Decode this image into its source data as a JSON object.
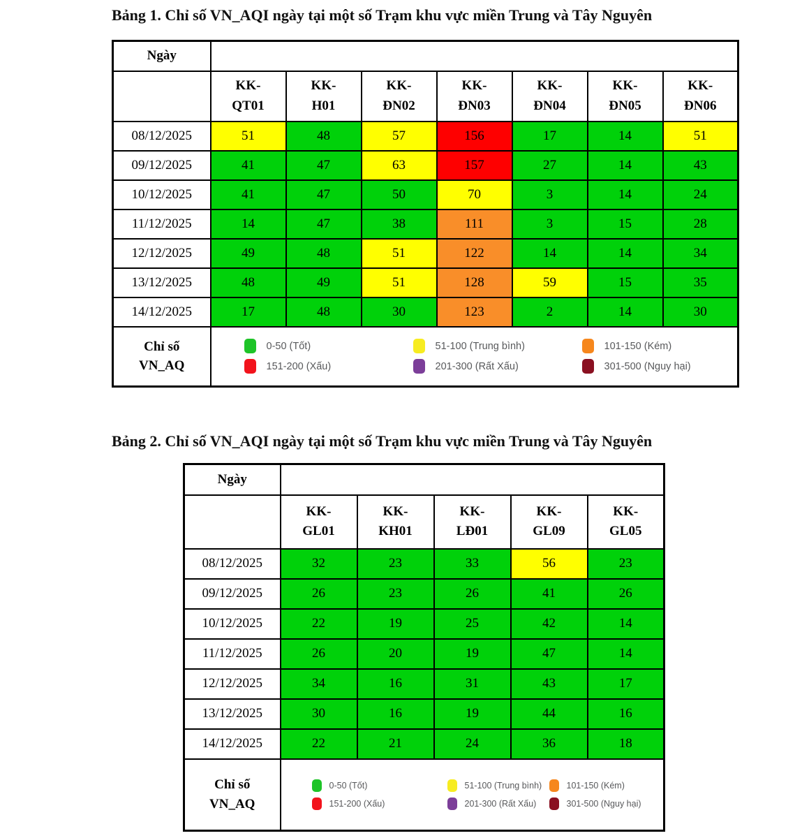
{
  "legend": {
    "label_lines": [
      "Chỉ số",
      "VN_AQ"
    ],
    "column_order": [
      [
        0,
        3
      ],
      [
        1,
        4
      ],
      [
        2,
        5
      ]
    ]
  },
  "aqi_levels": [
    {
      "label": "0-50 (Tốt)",
      "cell_color": "#00D10A",
      "swatch_color": "#1EC428",
      "max": 50
    },
    {
      "label": "51-100 (Trung bình)",
      "cell_color": "#FFFF00",
      "swatch_color": "#F7EC21",
      "max": 100
    },
    {
      "label": "101-150 (Kém)",
      "cell_color": "#F98E29",
      "swatch_color": "#F6871D",
      "max": 150
    },
    {
      "label": "151-200 (Xấu)",
      "cell_color": "#FE0000",
      "swatch_color": "#F2131C",
      "max": 200
    },
    {
      "label": "201-300 (Rất Xấu)",
      "cell_color": "#7C3E99",
      "swatch_color": "#7C3E99",
      "max": 300
    },
    {
      "label": "301-500 (Nguy hại)",
      "cell_color": "#8A1021",
      "swatch_color": "#8A1021",
      "max": 500
    }
  ],
  "tables": [
    {
      "caption": "Bảng 1. Chỉ số VN_AQI ngày tại một số Trạm khu vực miền Trung và Tây Nguyên",
      "date_header": "Ngày",
      "stations": [
        "KK-QT01",
        "KK-H01",
        "KK-ĐN02",
        "KK-ĐN03",
        "KK-ĐN04",
        "KK-ĐN05",
        "KK-ĐN06"
      ],
      "rows": [
        {
          "date": "08/12/2025",
          "values": [
            51,
            48,
            57,
            156,
            17,
            14,
            51
          ]
        },
        {
          "date": "09/12/2025",
          "values": [
            41,
            47,
            63,
            157,
            27,
            14,
            43
          ]
        },
        {
          "date": "10/12/2025",
          "values": [
            41,
            47,
            50,
            70,
            3,
            14,
            24
          ]
        },
        {
          "date": "11/12/2025",
          "values": [
            14,
            47,
            38,
            111,
            3,
            15,
            28
          ]
        },
        {
          "date": "12/12/2025",
          "values": [
            49,
            48,
            51,
            122,
            14,
            14,
            34
          ]
        },
        {
          "date": "13/12/2025",
          "values": [
            48,
            49,
            51,
            128,
            59,
            15,
            35
          ]
        },
        {
          "date": "14/12/2025",
          "values": [
            17,
            48,
            30,
            123,
            2,
            14,
            30
          ]
        }
      ]
    },
    {
      "caption": "Bảng 2. Chỉ số VN_AQI ngày tại một số Trạm khu vực miền Trung và Tây Nguyên",
      "date_header": "Ngày",
      "stations": [
        "KK-GL01",
        "KK-KH01",
        "KK-LĐ01",
        "KK-GL09",
        "KK-GL05"
      ],
      "rows": [
        {
          "date": "08/12/2025",
          "values": [
            32,
            23,
            33,
            56,
            23
          ]
        },
        {
          "date": "09/12/2025",
          "values": [
            26,
            23,
            26,
            41,
            26
          ]
        },
        {
          "date": "10/12/2025",
          "values": [
            22,
            19,
            25,
            42,
            14
          ]
        },
        {
          "date": "11/12/2025",
          "values": [
            26,
            20,
            19,
            47,
            14
          ]
        },
        {
          "date": "12/12/2025",
          "values": [
            34,
            16,
            31,
            43,
            17
          ]
        },
        {
          "date": "13/12/2025",
          "values": [
            30,
            16,
            19,
            44,
            16
          ]
        },
        {
          "date": "14/12/2025",
          "values": [
            22,
            21,
            24,
            36,
            18
          ]
        }
      ]
    }
  ]
}
